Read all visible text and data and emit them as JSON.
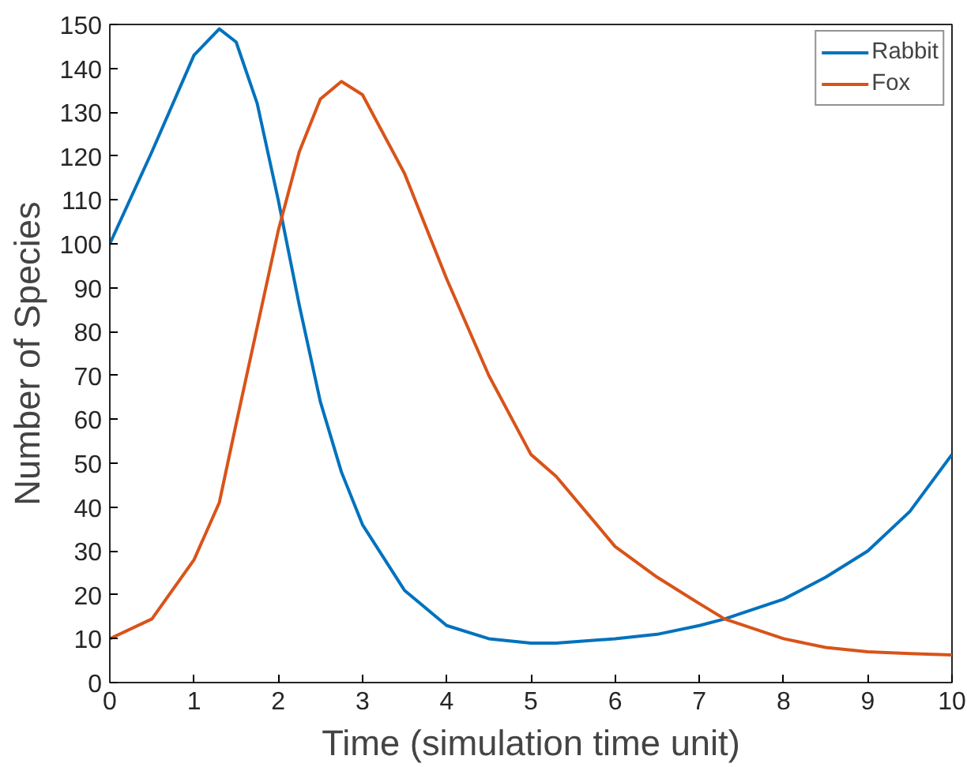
{
  "chart_data": {
    "type": "line",
    "xlabel": "Time (simulation time unit)",
    "ylabel": "Number of Species",
    "xlim": [
      0,
      10
    ],
    "ylim": [
      0,
      150
    ],
    "xticks": [
      0,
      1,
      2,
      3,
      4,
      5,
      6,
      7,
      8,
      9,
      10
    ],
    "yticks": [
      0,
      10,
      20,
      30,
      40,
      50,
      60,
      70,
      80,
      90,
      100,
      110,
      120,
      130,
      140,
      150
    ],
    "grid": false,
    "legend": "top right",
    "line_style": "solid",
    "marker": "none",
    "x": [
      0,
      0.5,
      1,
      1.3,
      1.5,
      1.75,
      2,
      2.25,
      2.5,
      2.75,
      3,
      3.5,
      4,
      4.5,
      5,
      5.3,
      6,
      6.5,
      7,
      7.3,
      8,
      8.5,
      9,
      9.5,
      10
    ],
    "series": [
      {
        "name": "Rabbit",
        "color": "#0072bd",
        "values": [
          100,
          121,
          143,
          149,
          146,
          132,
          110,
          86,
          64,
          48,
          36,
          21,
          13,
          10,
          9,
          9,
          10,
          11,
          13,
          14.5,
          19,
          24,
          30,
          39,
          52
        ]
      },
      {
        "name": "Fox",
        "color": "#d95319",
        "values": [
          10,
          14.5,
          28,
          41,
          59,
          81,
          103,
          121,
          133,
          137,
          134,
          116,
          92,
          70,
          52,
          47,
          31,
          24,
          18,
          14.5,
          10,
          8,
          7,
          6.6,
          6.3
        ]
      }
    ]
  }
}
